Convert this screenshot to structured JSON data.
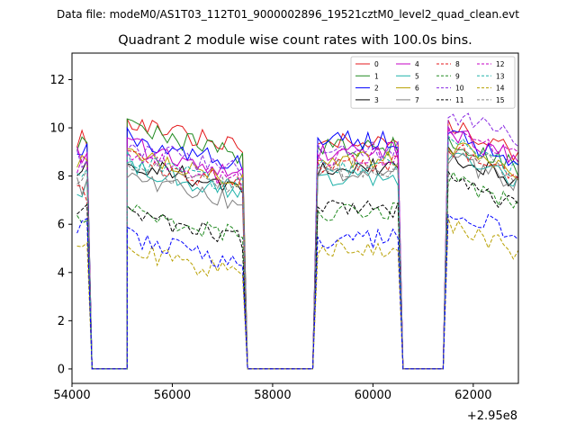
{
  "suptitle": "Data file: modeM0/AS1T03_112T01_9000002896_19521cztM0_level2_quad_clean.evt",
  "chart_data": {
    "type": "line",
    "title": "Quadrant 2 module wise count rates with 100.0s bins.",
    "xlabel": "",
    "ylabel": "",
    "x_offset_label": "+2.95e8",
    "xlim": [
      54000,
      62900
    ],
    "ylim": [
      -0.6,
      13.1
    ],
    "x_ticks": [
      54000,
      56000,
      58000,
      60000,
      62000
    ],
    "y_ticks": [
      0,
      2,
      4,
      6,
      8,
      10,
      12
    ],
    "x_tick_labels": [
      "54000",
      "56000",
      "58000",
      "60000",
      "62000"
    ],
    "y_tick_labels": [
      "0",
      "2",
      "4",
      "6",
      "8",
      "10",
      "12"
    ],
    "legend_position": "top-right",
    "bins": {
      "segments": [
        {
          "start": 54100,
          "n": 3
        },
        {
          "start": 54400,
          "n": 8
        },
        {
          "start": 55100,
          "n": 24
        },
        {
          "start": 57500,
          "n": 14
        },
        {
          "start": 58900,
          "n": 17
        },
        {
          "start": 60600,
          "n": 9
        },
        {
          "start": 61500,
          "n": 15
        }
      ],
      "step": 100,
      "zero_segments": [
        1,
        3,
        5
      ]
    },
    "series": [
      {
        "name": "0",
        "color": "#e41a1c",
        "dash": "solid",
        "levels": [
          9.6,
          10.3,
          9.5,
          10.1,
          9.3
        ]
      },
      {
        "name": "1",
        "color": "#228b22",
        "dash": "solid",
        "levels": [
          9.4,
          10.0,
          9.2,
          9.5,
          9.0
        ]
      },
      {
        "name": "2",
        "color": "#0000ff",
        "dash": "solid",
        "levels": [
          9.2,
          9.6,
          9.5,
          9.7,
          9.2
        ]
      },
      {
        "name": "3",
        "color": "#000000",
        "dash": "solid",
        "levels": [
          8.3,
          8.6,
          8.4,
          8.9,
          8.2
        ]
      },
      {
        "name": "4",
        "color": "#c400c4",
        "dash": "solid",
        "levels": [
          8.9,
          9.3,
          9.0,
          9.8,
          8.9
        ]
      },
      {
        "name": "5",
        "color": "#20b2aa",
        "dash": "solid",
        "levels": [
          7.5,
          8.4,
          8.0,
          9.0,
          8.0
        ]
      },
      {
        "name": "6",
        "color": "#b8a000",
        "dash": "solid",
        "levels": [
          8.6,
          8.9,
          8.7,
          9.3,
          8.6
        ]
      },
      {
        "name": "7",
        "color": "#808080",
        "dash": "solid",
        "levels": [
          7.6,
          8.0,
          8.2,
          8.8,
          7.8
        ]
      },
      {
        "name": "8",
        "color": "#e41a1c",
        "dash": "dashed",
        "levels": [
          7.3,
          8.7,
          8.5,
          9.2,
          8.4
        ]
      },
      {
        "name": "9",
        "color": "#228b22",
        "dash": "dashed",
        "levels": [
          6.4,
          6.6,
          6.5,
          7.9,
          6.4
        ]
      },
      {
        "name": "10",
        "color": "#8a2be2",
        "dash": "dashed",
        "levels": [
          8.7,
          9.3,
          9.1,
          10.6,
          9.0
        ]
      },
      {
        "name": "11",
        "color": "#000000",
        "dash": "dashed",
        "levels": [
          6.5,
          6.5,
          6.6,
          7.8,
          6.5
        ]
      },
      {
        "name": "12",
        "color": "#c400c4",
        "dash": "dashed",
        "levels": [
          8.5,
          8.9,
          8.8,
          9.9,
          8.7
        ]
      },
      {
        "name": "13",
        "color": "#20b2aa",
        "dash": "dashed",
        "levels": [
          8.2,
          8.7,
          8.5,
          9.4,
          8.4
        ]
      },
      {
        "name": "14",
        "color": "#b8a000",
        "dash": "dashed",
        "levels": [
          5.0,
          5.0,
          5.0,
          6.0,
          4.9
        ]
      },
      {
        "name": "15",
        "color": "#808080",
        "dash": "dashed",
        "levels": [
          8.0,
          8.5,
          8.3,
          9.2,
          8.2
        ]
      },
      {
        "name": "2d",
        "color": "#0000ff",
        "dash": "dashed",
        "levels": [
          6.0,
          5.5,
          5.4,
          6.7,
          5.5
        ],
        "legend": false
      }
    ]
  }
}
